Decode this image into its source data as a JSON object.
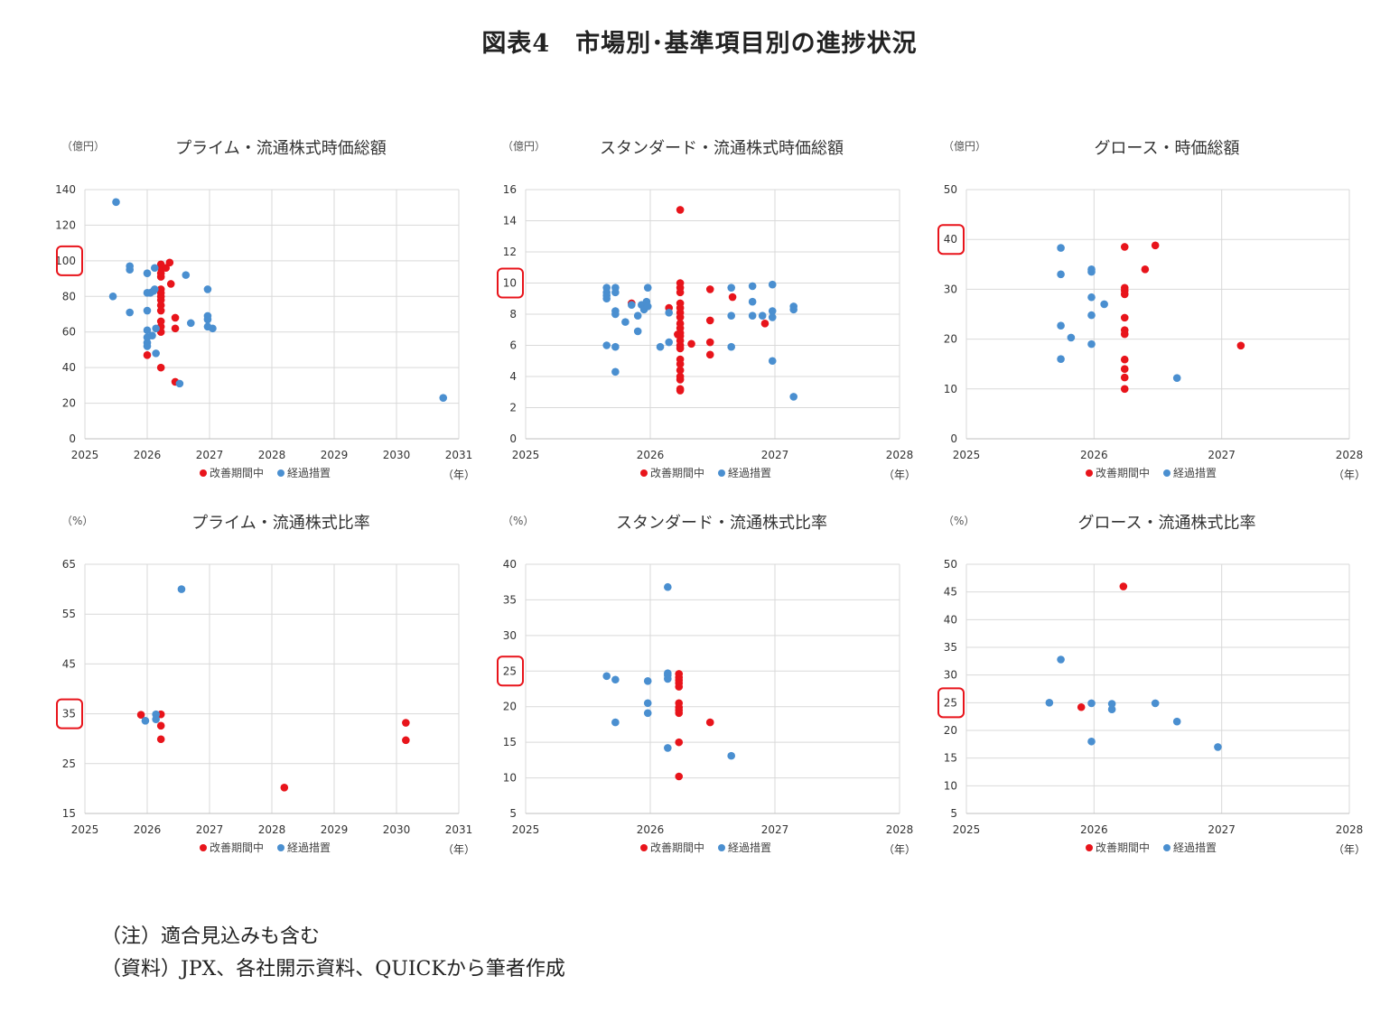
{
  "figure_title": "図表4　市場別･基準項目別の進捗状況",
  "notes": [
    "（注）適合見込みも含む",
    "（資料）JPX、各社開示資料、QUICKから筆者作成"
  ],
  "colors": {
    "improvement": "#e8141b",
    "transition": "#4a8fd0",
    "grid": "#d9d9d9",
    "highlight": "#e8141b"
  },
  "chart_data": [
    {
      "type": "scatter",
      "title": "プライム・流通株式時価総額",
      "unit_label": "（億円）",
      "xlabel": "（年）",
      "xlim": [
        2025,
        2031
      ],
      "xticks": [
        2025,
        2026,
        2027,
        2028,
        2029,
        2030,
        2031
      ],
      "ylim": [
        0,
        140
      ],
      "yticks": [
        0,
        20,
        40,
        60,
        80,
        100,
        120,
        140
      ],
      "highlight_tick": 100,
      "grid": true,
      "legend_position": "bottom",
      "series": [
        {
          "name": "改善期間中",
          "color": "#e8141b",
          "x": [
            2026.0,
            2026.22,
            2026.22,
            2026.22,
            2026.22,
            2026.22,
            2026.22,
            2026.22,
            2026.22,
            2026.22,
            2026.22,
            2026.22,
            2026.22,
            2026.22,
            2026.22,
            2026.3,
            2026.36,
            2026.38,
            2026.45,
            2026.45,
            2026.45
          ],
          "y": [
            47,
            98,
            96,
            93,
            91,
            84,
            82,
            80,
            78,
            75,
            72,
            66,
            63,
            60,
            40,
            96,
            99,
            87,
            68,
            62,
            32
          ]
        },
        {
          "name": "経過措置",
          "color": "#4a8fd0",
          "x": [
            2025.5,
            2025.45,
            2025.72,
            2025.72,
            2025.72,
            2026.0,
            2026.0,
            2026.0,
            2026.0,
            2026.0,
            2026.0,
            2026.0,
            2026.05,
            2026.08,
            2026.1,
            2026.12,
            2026.12,
            2026.14,
            2026.14,
            2026.52,
            2026.62,
            2026.7,
            2026.97,
            2026.97,
            2026.97,
            2026.97,
            2027.05,
            2030.75
          ],
          "y": [
            133,
            80,
            97,
            95,
            71,
            93,
            82,
            72,
            61,
            57,
            54,
            52,
            82,
            58,
            83,
            84,
            96,
            48,
            62,
            31,
            92,
            65,
            84,
            69,
            67,
            63,
            62,
            23
          ]
        }
      ]
    },
    {
      "type": "scatter",
      "title": "スタンダード・流通株式時価総額",
      "unit_label": "（億円）",
      "xlabel": "（年）",
      "xlim": [
        2025,
        2028
      ],
      "xticks": [
        2025,
        2026,
        2027,
        2028
      ],
      "ylim": [
        0,
        16
      ],
      "yticks": [
        0,
        2,
        4,
        6,
        8,
        10,
        12,
        14,
        16
      ],
      "highlight_tick": 10,
      "grid": true,
      "legend_position": "bottom",
      "series": [
        {
          "name": "改善期間中",
          "color": "#e8141b",
          "x": [
            2025.85,
            2026.15,
            2026.22,
            2026.24,
            2026.24,
            2026.24,
            2026.24,
            2026.24,
            2026.24,
            2026.24,
            2026.24,
            2026.24,
            2026.24,
            2026.24,
            2026.24,
            2026.24,
            2026.24,
            2026.24,
            2026.24,
            2026.24,
            2026.24,
            2026.24,
            2026.24,
            2026.24,
            2026.24,
            2026.33,
            2026.48,
            2026.48,
            2026.48,
            2026.48,
            2026.66,
            2026.92
          ],
          "y": [
            8.7,
            8.4,
            6.7,
            14.7,
            10.0,
            9.7,
            9.4,
            8.7,
            8.4,
            8.1,
            7.8,
            7.4,
            7.1,
            6.8,
            6.6,
            6.3,
            6.0,
            5.8,
            5.1,
            4.8,
            4.4,
            4.0,
            3.8,
            3.2,
            3.1,
            6.1,
            9.6,
            7.6,
            6.2,
            5.4,
            9.1,
            7.4
          ]
        },
        {
          "name": "経過措置",
          "color": "#4a8fd0",
          "x": [
            2025.65,
            2025.65,
            2025.65,
            2025.65,
            2025.65,
            2025.72,
            2025.72,
            2025.72,
            2025.72,
            2025.72,
            2025.72,
            2025.8,
            2025.85,
            2025.9,
            2025.9,
            2025.93,
            2025.95,
            2025.97,
            2025.98,
            2025.98,
            2026.08,
            2026.15,
            2026.15,
            2026.65,
            2026.65,
            2026.65,
            2026.82,
            2026.82,
            2026.82,
            2026.9,
            2026.98,
            2026.98,
            2026.98,
            2026.98,
            2027.15,
            2027.15,
            2027.15
          ],
          "y": [
            9.7,
            9.4,
            9.2,
            9.0,
            6.0,
            9.7,
            9.4,
            8.2,
            8.0,
            5.9,
            4.3,
            7.5,
            8.6,
            7.9,
            6.9,
            8.6,
            8.3,
            8.8,
            8.5,
            9.7,
            5.9,
            8.1,
            6.2,
            9.7,
            7.9,
            5.9,
            9.8,
            8.8,
            7.9,
            7.9,
            9.9,
            8.2,
            7.8,
            5.0,
            8.5,
            8.3,
            2.7
          ]
        }
      ]
    },
    {
      "type": "scatter",
      "title": "グロース・時価総額",
      "unit_label": "（億円）",
      "xlabel": "（年）",
      "xlim": [
        2025,
        2028
      ],
      "xticks": [
        2025,
        2026,
        2027,
        2028
      ],
      "ylim": [
        0,
        50
      ],
      "yticks": [
        0,
        10,
        20,
        30,
        40,
        50
      ],
      "highlight_tick": 40,
      "grid": true,
      "legend_position": "bottom",
      "series": [
        {
          "name": "改善期間中",
          "color": "#e8141b",
          "x": [
            2026.24,
            2026.24,
            2026.24,
            2026.24,
            2026.24,
            2026.24,
            2026.24,
            2026.24,
            2026.24,
            2026.24,
            2026.24,
            2026.4,
            2026.48,
            2027.15
          ],
          "y": [
            38.5,
            30.3,
            29.7,
            29.0,
            24.3,
            21.8,
            21.0,
            15.9,
            14.0,
            12.3,
            10.0,
            34.0,
            38.8,
            18.7
          ]
        },
        {
          "name": "経過措置",
          "color": "#4a8fd0",
          "x": [
            2025.74,
            2025.74,
            2025.74,
            2025.74,
            2025.82,
            2025.98,
            2025.98,
            2025.98,
            2025.98,
            2025.98,
            2026.08,
            2026.65
          ],
          "y": [
            38.3,
            33.0,
            22.7,
            16.0,
            20.3,
            34.0,
            33.5,
            28.4,
            24.8,
            19.0,
            27.0,
            12.2
          ]
        }
      ]
    },
    {
      "type": "scatter",
      "title": "プライム・流通株式比率",
      "unit_label": "（%）",
      "xlabel": "（年）",
      "xlim": [
        2025,
        2031
      ],
      "xticks": [
        2025,
        2026,
        2027,
        2028,
        2029,
        2030,
        2031
      ],
      "ylim": [
        15,
        65
      ],
      "yticks": [
        15,
        25,
        35,
        45,
        55,
        65
      ],
      "highlight_tick": 35,
      "grid": true,
      "legend_position": "bottom",
      "series": [
        {
          "name": "改善期間中",
          "color": "#e8141b",
          "x": [
            2025.9,
            2026.22,
            2026.22,
            2026.22,
            2028.2,
            2030.15,
            2030.15
          ],
          "y": [
            34.8,
            34.9,
            32.6,
            29.9,
            20.2,
            33.2,
            29.7
          ]
        },
        {
          "name": "経過措置",
          "color": "#4a8fd0",
          "x": [
            2025.97,
            2026.14,
            2026.14,
            2026.55
          ],
          "y": [
            33.6,
            34.9,
            33.9,
            60.0
          ]
        }
      ]
    },
    {
      "type": "scatter",
      "title": "スタンダード・流通株式比率",
      "unit_label": "（%）",
      "xlabel": "（年）",
      "xlim": [
        2025,
        2028
      ],
      "xticks": [
        2025,
        2026,
        2027,
        2028
      ],
      "ylim": [
        5,
        40
      ],
      "yticks": [
        5,
        10,
        15,
        20,
        25,
        30,
        35,
        40
      ],
      "highlight_tick": 25,
      "grid": true,
      "legend_position": "bottom",
      "series": [
        {
          "name": "改善期間中",
          "color": "#e8141b",
          "x": [
            2026.23,
            2026.23,
            2026.23,
            2026.23,
            2026.23,
            2026.23,
            2026.23,
            2026.23,
            2026.23,
            2026.23,
            2026.23,
            2026.48
          ],
          "y": [
            24.6,
            24.1,
            23.7,
            23.3,
            22.8,
            20.5,
            19.9,
            19.5,
            19.1,
            15.0,
            10.2,
            17.8
          ]
        },
        {
          "name": "経過措置",
          "color": "#4a8fd0",
          "x": [
            2025.65,
            2025.72,
            2025.72,
            2025.98,
            2025.98,
            2025.98,
            2026.14,
            2026.14,
            2026.14,
            2026.14,
            2026.14,
            2026.65
          ],
          "y": [
            24.3,
            23.8,
            17.8,
            23.6,
            20.5,
            19.1,
            36.8,
            24.7,
            24.4,
            23.9,
            14.2,
            13.1
          ]
        }
      ]
    },
    {
      "type": "scatter",
      "title": "グロース・流通株式比率",
      "unit_label": "（%）",
      "xlabel": "（年）",
      "xlim": [
        2025,
        2028
      ],
      "xticks": [
        2025,
        2026,
        2027,
        2028
      ],
      "ylim": [
        5,
        50
      ],
      "yticks": [
        5,
        10,
        15,
        20,
        25,
        30,
        35,
        40,
        45,
        50
      ],
      "highlight_tick": 25,
      "grid": true,
      "legend_position": "bottom",
      "series": [
        {
          "name": "改善期間中",
          "color": "#e8141b",
          "x": [
            2025.9,
            2026.23
          ],
          "y": [
            24.2,
            46.0
          ]
        },
        {
          "name": "経過措置",
          "color": "#4a8fd0",
          "x": [
            2025.65,
            2025.74,
            2025.98,
            2025.98,
            2026.14,
            2026.14,
            2026.48,
            2026.65,
            2026.97
          ],
          "y": [
            25.0,
            32.8,
            24.9,
            18.0,
            24.8,
            23.8,
            24.9,
            21.6,
            17.0
          ]
        }
      ]
    }
  ]
}
